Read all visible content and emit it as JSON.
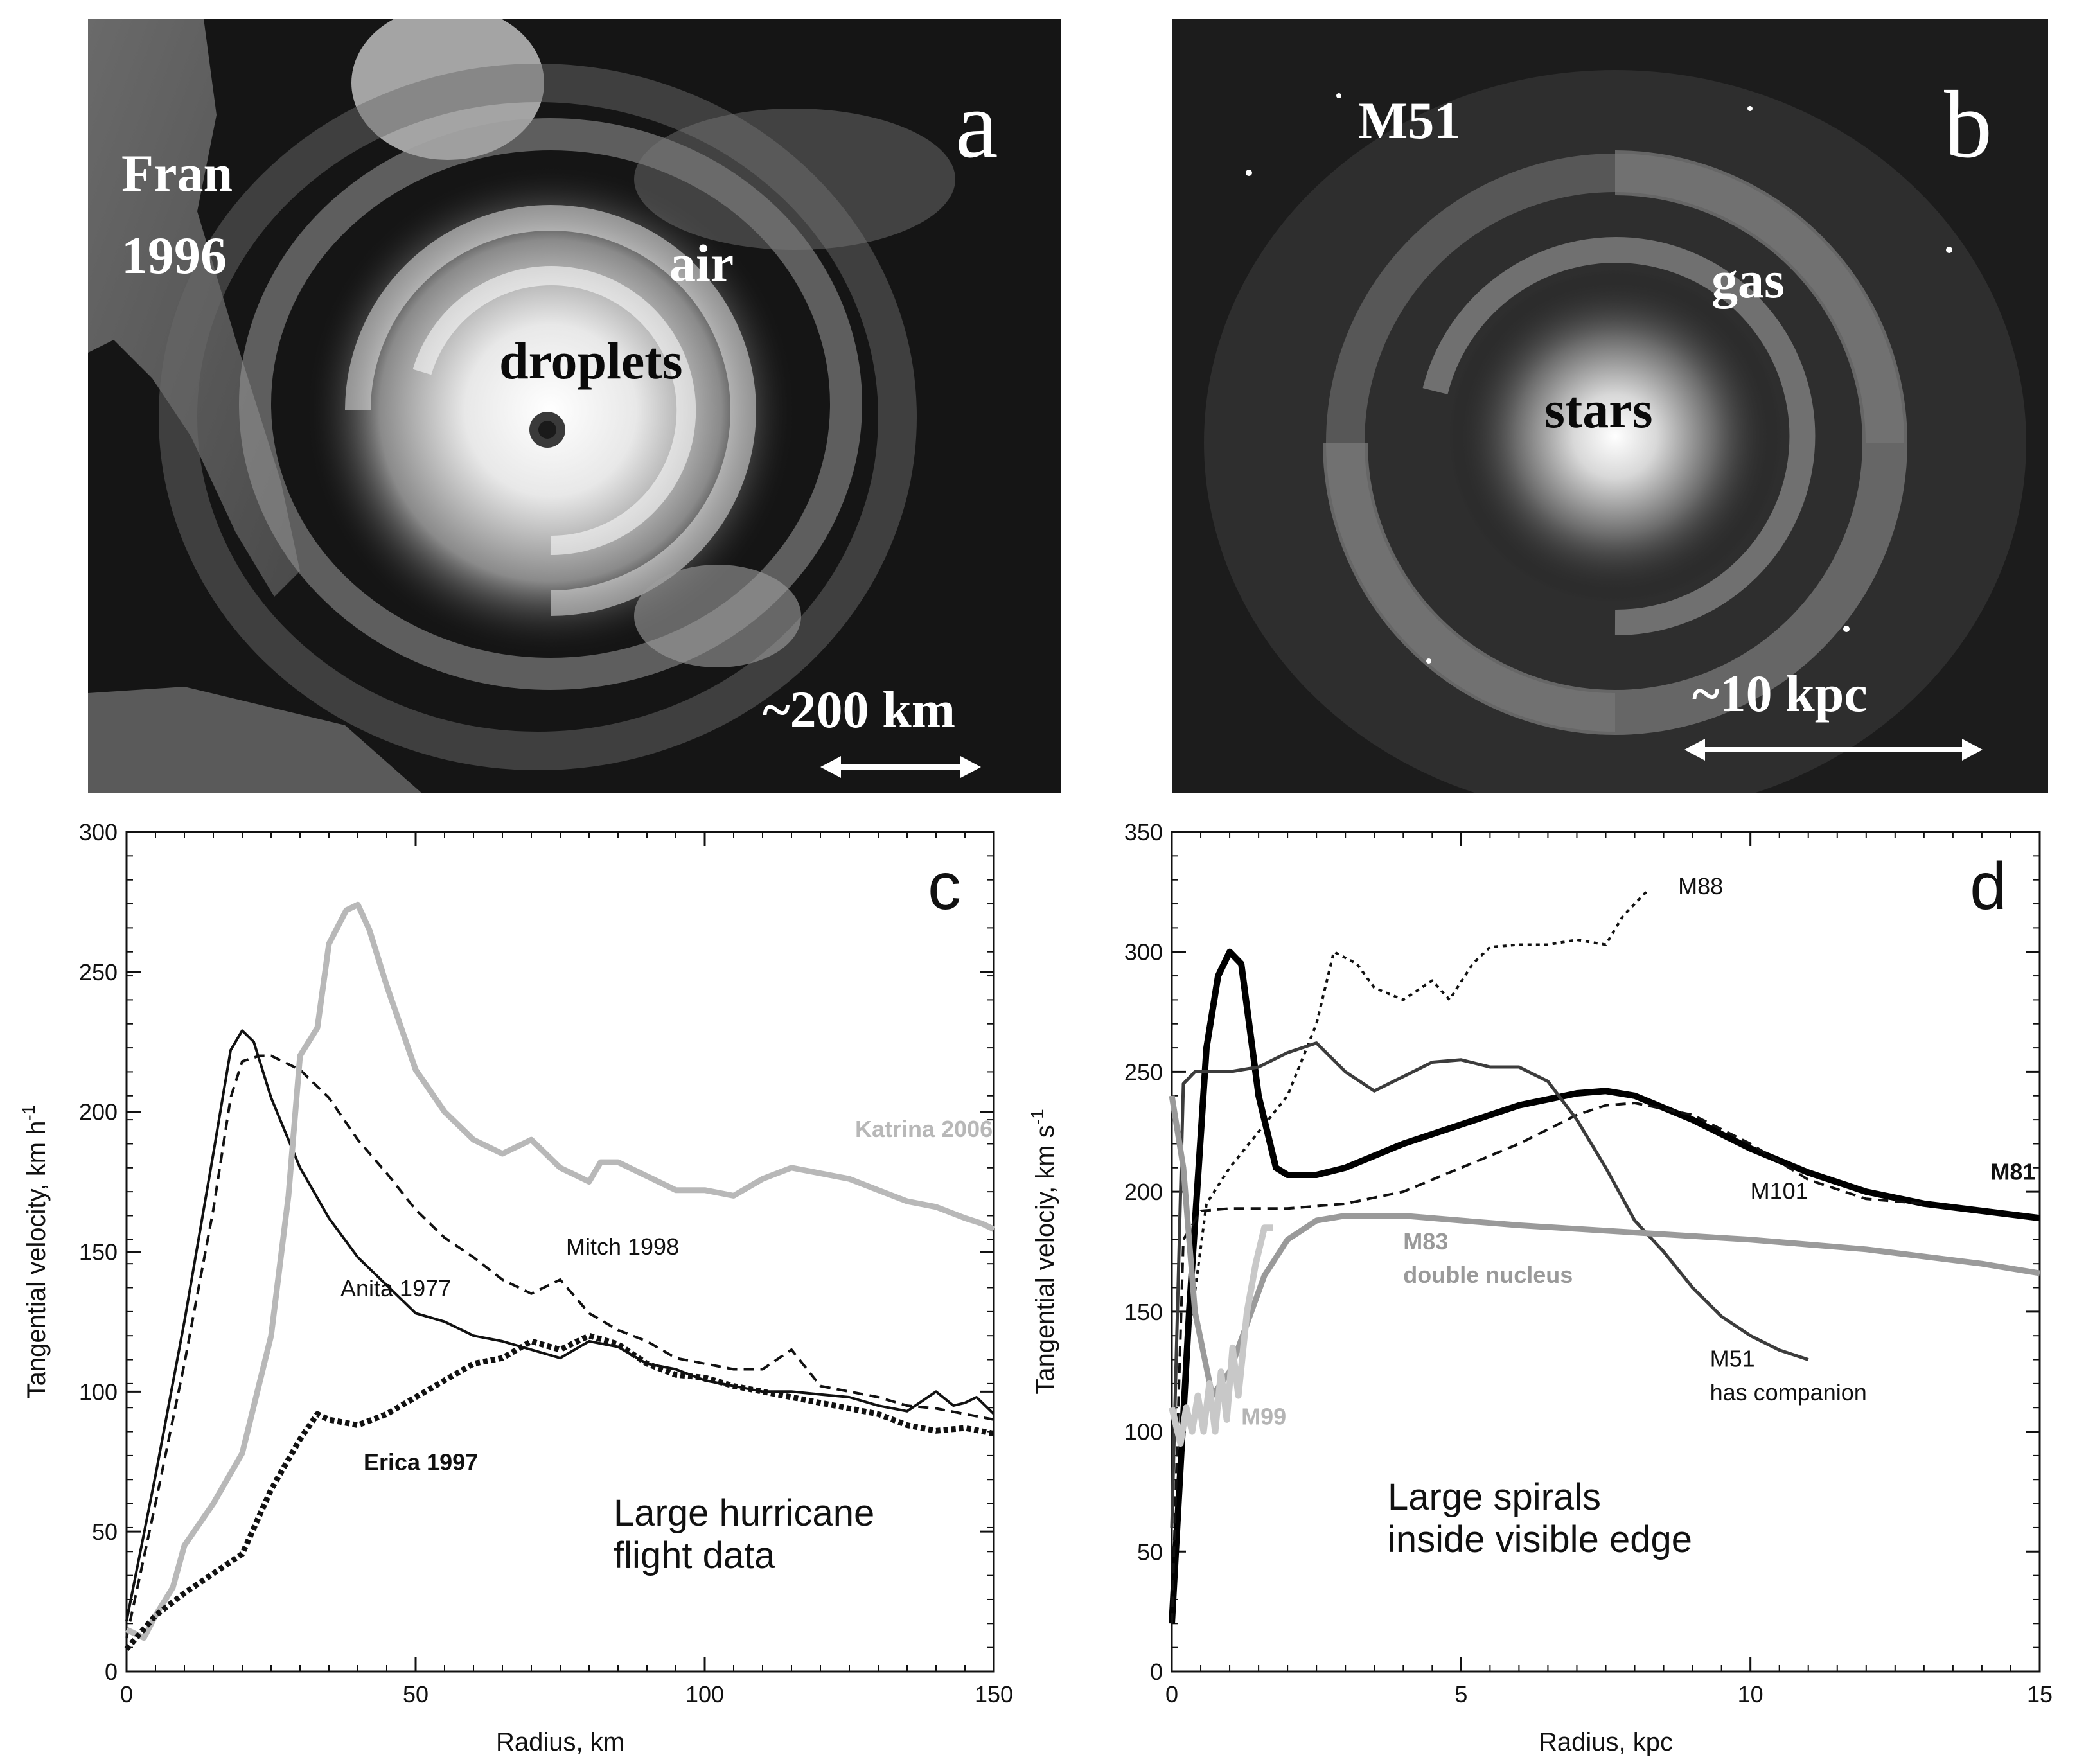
{
  "panel_a": {
    "letter": "a",
    "storm_name": "Fran",
    "storm_year": "1996",
    "label_air": "air",
    "label_droplets": "droplets",
    "scale_text": "~200 km"
  },
  "panel_b": {
    "letter": "b",
    "galaxy_name": "M51",
    "label_gas": "gas",
    "label_stars": "stars",
    "scale_text": "~10 kpc"
  },
  "chart_data": [
    {
      "id": "c",
      "type": "line",
      "letter": "c",
      "xlabel": "Radius, km",
      "ylabel": "Tangential velocity, km h",
      "ylabel_sup": "-1",
      "xlim": [
        0,
        150
      ],
      "ylim": [
        0,
        300
      ],
      "xticks": [
        0,
        50,
        100,
        150
      ],
      "yticks": [
        0,
        50,
        100,
        150,
        200,
        250,
        300
      ],
      "annotation": [
        "Large hurricane",
        "flight data"
      ],
      "series": [
        {
          "name": "Anita 1977",
          "label": "Anita 1977",
          "style": "solid-thin",
          "color": "#111111",
          "label_at": [
            37,
            134
          ],
          "x": [
            0,
            5,
            10,
            15,
            18,
            20,
            22,
            25,
            30,
            35,
            40,
            45,
            50,
            55,
            60,
            65,
            70,
            75,
            80,
            85,
            90,
            95,
            100,
            105,
            110,
            115,
            120,
            125,
            130,
            135,
            140,
            143,
            145,
            147,
            150
          ],
          "y": [
            18,
            70,
            125,
            185,
            222,
            229,
            225,
            205,
            180,
            162,
            148,
            138,
            128,
            125,
            120,
            118,
            115,
            112,
            118,
            116,
            110,
            108,
            104,
            102,
            100,
            100,
            99,
            98,
            95,
            93,
            100,
            95,
            96,
            98,
            92
          ]
        },
        {
          "name": "Mitch 1998",
          "label": "Mitch 1998",
          "style": "dashed",
          "color": "#111111",
          "label_at": [
            76,
            149
          ],
          "x": [
            0,
            5,
            10,
            15,
            18,
            20,
            23,
            25,
            30,
            35,
            40,
            45,
            50,
            55,
            60,
            65,
            70,
            75,
            80,
            85,
            90,
            95,
            100,
            105,
            110,
            115,
            120,
            125,
            130,
            135,
            140,
            145,
            150
          ],
          "y": [
            12,
            60,
            110,
            165,
            205,
            218,
            220,
            220,
            215,
            205,
            190,
            178,
            165,
            155,
            148,
            140,
            135,
            140,
            128,
            122,
            118,
            112,
            110,
            108,
            108,
            115,
            102,
            100,
            98,
            95,
            94,
            92,
            90
          ]
        },
        {
          "name": "Katrina 2006",
          "label": "Katrina 2006",
          "style": "gray-thick",
          "color": "#b8b8b8",
          "label_at": [
            126,
            191
          ],
          "x": [
            0,
            3,
            5,
            8,
            10,
            15,
            20,
            25,
            28,
            30,
            33,
            35,
            38,
            40,
            42,
            45,
            50,
            55,
            60,
            65,
            70,
            75,
            80,
            82,
            85,
            90,
            95,
            100,
            105,
            110,
            115,
            120,
            125,
            130,
            135,
            140,
            145,
            148,
            150
          ],
          "y": [
            15,
            12,
            20,
            30,
            45,
            60,
            78,
            120,
            170,
            220,
            230,
            260,
            272,
            274,
            265,
            245,
            215,
            200,
            190,
            185,
            190,
            180,
            175,
            182,
            182,
            177,
            172,
            172,
            170,
            176,
            180,
            178,
            176,
            172,
            168,
            166,
            162,
            160,
            158
          ]
        },
        {
          "name": "Erica 1997",
          "label": "Erica 1997",
          "style": "dotted-bold",
          "color": "#111111",
          "label_at": [
            41,
            72
          ],
          "x": [
            0,
            5,
            10,
            15,
            20,
            25,
            30,
            33,
            35,
            40,
            45,
            50,
            55,
            60,
            65,
            70,
            75,
            80,
            85,
            90,
            95,
            100,
            105,
            110,
            115,
            120,
            125,
            130,
            135,
            140,
            145,
            150
          ],
          "y": [
            8,
            20,
            28,
            35,
            42,
            65,
            83,
            92,
            90,
            88,
            92,
            98,
            104,
            110,
            112,
            118,
            115,
            120,
            117,
            110,
            106,
            105,
            102,
            100,
            98,
            96,
            94,
            92,
            88,
            86,
            87,
            85
          ]
        }
      ]
    },
    {
      "id": "d",
      "type": "line",
      "letter": "d",
      "xlabel": "Radius, kpc",
      "ylabel": "Tangential velociy, km s",
      "ylabel_sup": "-1",
      "xlim": [
        0,
        15
      ],
      "ylim": [
        0,
        350
      ],
      "xticks": [
        0,
        5,
        10,
        15
      ],
      "yticks": [
        0,
        50,
        100,
        150,
        200,
        250,
        300,
        350
      ],
      "annotation": [
        "Large spirals",
        "inside visible edge"
      ],
      "series": [
        {
          "name": "M88",
          "label": "M88",
          "style": "dotted-thin",
          "color": "#111111",
          "label_at": [
            8.75,
            324
          ],
          "x": [
            0,
            0.3,
            0.6,
            1.0,
            1.5,
            2.0,
            2.5,
            2.8,
            3.2,
            3.5,
            4.0,
            4.5,
            4.8,
            5.2,
            5.5,
            6.0,
            6.5,
            7.0,
            7.5,
            7.8,
            8.2
          ],
          "y": [
            20,
            140,
            195,
            210,
            225,
            240,
            270,
            300,
            295,
            285,
            280,
            288,
            280,
            295,
            302,
            303,
            303,
            305,
            303,
            315,
            325
          ]
        },
        {
          "name": "M81",
          "label": "M81",
          "style": "black-thick",
          "color": "#000000",
          "label_at": [
            14.15,
            205
          ],
          "x": [
            0,
            0.3,
            0.6,
            0.8,
            1.0,
            1.2,
            1.5,
            1.8,
            2.0,
            2.5,
            3.0,
            4.0,
            5.0,
            6.0,
            7.0,
            7.5,
            8.0,
            9.0,
            10.0,
            11.0,
            12.0,
            13.0,
            14.0,
            15.0
          ],
          "y": [
            20,
            150,
            260,
            290,
            300,
            295,
            240,
            210,
            207,
            207,
            210,
            220,
            228,
            236,
            241,
            242,
            240,
            230,
            218,
            208,
            200,
            195,
            192,
            189
          ]
        },
        {
          "name": "M101",
          "label": "M101",
          "style": "dashed",
          "color": "#111111",
          "label_at": [
            10.0,
            197
          ],
          "x": [
            0,
            0.2,
            0.5,
            1.0,
            2.0,
            3.0,
            4.0,
            5.0,
            6.0,
            7.0,
            7.5,
            8.0,
            9.0,
            10.0,
            11.0,
            12.0,
            13.0
          ],
          "y": [
            20,
            180,
            192,
            193,
            193,
            195,
            200,
            210,
            220,
            232,
            236,
            237,
            232,
            220,
            205,
            197,
            195
          ]
        },
        {
          "name": "M51 has companion",
          "label": "M51",
          "label2": "has companion",
          "style": "gray-dark",
          "color": "#3c3c3c",
          "label_at": [
            9.3,
            127
          ],
          "label2_at": [
            9.3,
            113
          ],
          "x": [
            0,
            0.2,
            0.4,
            0.7,
            1.0,
            1.5,
            2.0,
            2.5,
            3.0,
            3.5,
            4.0,
            4.5,
            5.0,
            5.5,
            6.0,
            6.5,
            7.0,
            7.5,
            8.0,
            8.5,
            9.0,
            9.5,
            10.0,
            10.5,
            11.0
          ],
          "y": [
            60,
            245,
            250,
            250,
            250,
            252,
            258,
            262,
            250,
            242,
            248,
            254,
            255,
            252,
            252,
            246,
            230,
            210,
            188,
            175,
            160,
            148,
            140,
            134,
            130
          ]
        },
        {
          "name": "M83 double nucleus",
          "label": "M83",
          "label2": "double nucleus",
          "style": "gray-thick",
          "color": "#9a9a9a",
          "label_at": [
            4.0,
            176
          ],
          "label2_at": [
            4.0,
            162
          ],
          "x": [
            0,
            0.2,
            0.4,
            0.7,
            1.0,
            1.3,
            1.6,
            2.0,
            2.5,
            3.0,
            4.0,
            5.0,
            6.0,
            8.0,
            10.0,
            12.0,
            14.0,
            15.0
          ],
          "y": [
            240,
            210,
            150,
            115,
            125,
            145,
            165,
            180,
            188,
            190,
            190,
            188,
            186,
            183,
            180,
            176,
            170,
            166
          ]
        },
        {
          "name": "M99",
          "label": "M99",
          "style": "light-thick",
          "color": "#c8c8c8",
          "label_at": [
            1.2,
            103
          ],
          "x": [
            0,
            0.15,
            0.25,
            0.35,
            0.45,
            0.55,
            0.65,
            0.75,
            0.85,
            0.95,
            1.05,
            1.15,
            1.3,
            1.45,
            1.6,
            1.75
          ],
          "y": [
            110,
            95,
            110,
            100,
            115,
            100,
            120,
            100,
            125,
            105,
            135,
            115,
            150,
            170,
            185,
            185
          ]
        }
      ]
    }
  ]
}
